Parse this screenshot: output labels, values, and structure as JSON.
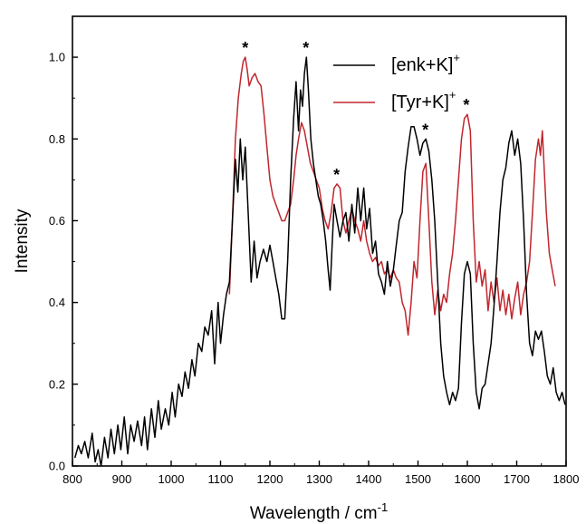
{
  "chart_data": {
    "type": "line",
    "title": "",
    "xlabel": "Wavelength / cm",
    "xlabel_superscript": "-1",
    "ylabel": "Intensity",
    "xlim": [
      800,
      1800
    ],
    "ylim": [
      0,
      1.1
    ],
    "grid": false,
    "legend_position": "top-right",
    "x_ticks": [
      "800",
      "900",
      "1000",
      "1100",
      "1200",
      "1300",
      "1400",
      "1500",
      "1600",
      "1700",
      "1800"
    ],
    "y_ticks": [
      "0.0",
      "0.2",
      "0.4",
      "0.6",
      "0.8",
      "1.0"
    ],
    "x_tick_values": [
      800,
      900,
      1000,
      1100,
      1200,
      1300,
      1400,
      1500,
      1600,
      1700,
      1800
    ],
    "y_tick_values": [
      0,
      0.2,
      0.4,
      0.6,
      0.8,
      1.0
    ],
    "annotation_symbol": "*",
    "annotations_x": [
      1150,
      1273,
      1335,
      1515,
      1598
    ],
    "series": [
      {
        "name": "[enk+K]",
        "name_superscript": "+",
        "color": "#000000",
        "points": [
          [
            805,
            0.02
          ],
          [
            812,
            0.05
          ],
          [
            818,
            0.03
          ],
          [
            825,
            0.06
          ],
          [
            832,
            0.02
          ],
          [
            840,
            0.08
          ],
          [
            846,
            0.01
          ],
          [
            852,
            0.04
          ],
          [
            858,
            0.0
          ],
          [
            865,
            0.07
          ],
          [
            872,
            0.02
          ],
          [
            878,
            0.09
          ],
          [
            885,
            0.03
          ],
          [
            892,
            0.1
          ],
          [
            898,
            0.04
          ],
          [
            905,
            0.12
          ],
          [
            912,
            0.03
          ],
          [
            918,
            0.1
          ],
          [
            925,
            0.06
          ],
          [
            932,
            0.11
          ],
          [
            940,
            0.05
          ],
          [
            946,
            0.12
          ],
          [
            952,
            0.04
          ],
          [
            960,
            0.14
          ],
          [
            967,
            0.07
          ],
          [
            974,
            0.16
          ],
          [
            980,
            0.09
          ],
          [
            988,
            0.14
          ],
          [
            995,
            0.1
          ],
          [
            1002,
            0.18
          ],
          [
            1008,
            0.12
          ],
          [
            1015,
            0.2
          ],
          [
            1022,
            0.17
          ],
          [
            1028,
            0.23
          ],
          [
            1035,
            0.19
          ],
          [
            1042,
            0.26
          ],
          [
            1048,
            0.22
          ],
          [
            1055,
            0.3
          ],
          [
            1062,
            0.28
          ],
          [
            1068,
            0.34
          ],
          [
            1075,
            0.32
          ],
          [
            1082,
            0.38
          ],
          [
            1088,
            0.25
          ],
          [
            1095,
            0.4
          ],
          [
            1100,
            0.3
          ],
          [
            1106,
            0.37
          ],
          [
            1112,
            0.42
          ],
          [
            1118,
            0.45
          ],
          [
            1124,
            0.6
          ],
          [
            1130,
            0.75
          ],
          [
            1135,
            0.67
          ],
          [
            1140,
            0.8
          ],
          [
            1145,
            0.7
          ],
          [
            1150,
            0.78
          ],
          [
            1156,
            0.62
          ],
          [
            1162,
            0.45
          ],
          [
            1168,
            0.55
          ],
          [
            1174,
            0.46
          ],
          [
            1180,
            0.5
          ],
          [
            1187,
            0.53
          ],
          [
            1194,
            0.5
          ],
          [
            1200,
            0.54
          ],
          [
            1206,
            0.5
          ],
          [
            1212,
            0.46
          ],
          [
            1218,
            0.42
          ],
          [
            1224,
            0.36
          ],
          [
            1230,
            0.36
          ],
          [
            1236,
            0.5
          ],
          [
            1242,
            0.7
          ],
          [
            1248,
            0.85
          ],
          [
            1253,
            0.94
          ],
          [
            1258,
            0.82
          ],
          [
            1262,
            0.92
          ],
          [
            1266,
            0.88
          ],
          [
            1270,
            0.96
          ],
          [
            1274,
            1.0
          ],
          [
            1278,
            0.92
          ],
          [
            1283,
            0.8
          ],
          [
            1288,
            0.74
          ],
          [
            1293,
            0.7
          ],
          [
            1298,
            0.66
          ],
          [
            1303,
            0.64
          ],
          [
            1308,
            0.6
          ],
          [
            1313,
            0.55
          ],
          [
            1318,
            0.48
          ],
          [
            1322,
            0.43
          ],
          [
            1326,
            0.54
          ],
          [
            1330,
            0.64
          ],
          [
            1336,
            0.6
          ],
          [
            1342,
            0.56
          ],
          [
            1348,
            0.6
          ],
          [
            1354,
            0.62
          ],
          [
            1360,
            0.55
          ],
          [
            1366,
            0.64
          ],
          [
            1372,
            0.57
          ],
          [
            1378,
            0.68
          ],
          [
            1384,
            0.6
          ],
          [
            1390,
            0.68
          ],
          [
            1396,
            0.58
          ],
          [
            1402,
            0.63
          ],
          [
            1408,
            0.52
          ],
          [
            1414,
            0.55
          ],
          [
            1420,
            0.47
          ],
          [
            1426,
            0.45
          ],
          [
            1432,
            0.42
          ],
          [
            1438,
            0.5
          ],
          [
            1444,
            0.44
          ],
          [
            1450,
            0.48
          ],
          [
            1456,
            0.54
          ],
          [
            1462,
            0.6
          ],
          [
            1468,
            0.62
          ],
          [
            1474,
            0.72
          ],
          [
            1480,
            0.78
          ],
          [
            1486,
            0.83
          ],
          [
            1492,
            0.83
          ],
          [
            1498,
            0.8
          ],
          [
            1504,
            0.76
          ],
          [
            1510,
            0.79
          ],
          [
            1516,
            0.8
          ],
          [
            1522,
            0.77
          ],
          [
            1528,
            0.7
          ],
          [
            1534,
            0.6
          ],
          [
            1540,
            0.45
          ],
          [
            1546,
            0.3
          ],
          [
            1552,
            0.22
          ],
          [
            1558,
            0.18
          ],
          [
            1564,
            0.15
          ],
          [
            1570,
            0.18
          ],
          [
            1576,
            0.16
          ],
          [
            1582,
            0.19
          ],
          [
            1588,
            0.35
          ],
          [
            1594,
            0.47
          ],
          [
            1600,
            0.5
          ],
          [
            1606,
            0.47
          ],
          [
            1612,
            0.3
          ],
          [
            1618,
            0.18
          ],
          [
            1624,
            0.14
          ],
          [
            1630,
            0.19
          ],
          [
            1636,
            0.2
          ],
          [
            1642,
            0.25
          ],
          [
            1648,
            0.3
          ],
          [
            1654,
            0.39
          ],
          [
            1660,
            0.5
          ],
          [
            1666,
            0.62
          ],
          [
            1672,
            0.7
          ],
          [
            1678,
            0.73
          ],
          [
            1684,
            0.79
          ],
          [
            1690,
            0.82
          ],
          [
            1696,
            0.76
          ],
          [
            1702,
            0.8
          ],
          [
            1708,
            0.74
          ],
          [
            1714,
            0.6
          ],
          [
            1720,
            0.42
          ],
          [
            1726,
            0.3
          ],
          [
            1732,
            0.27
          ],
          [
            1738,
            0.33
          ],
          [
            1744,
            0.31
          ],
          [
            1750,
            0.33
          ],
          [
            1756,
            0.28
          ],
          [
            1762,
            0.22
          ],
          [
            1768,
            0.2
          ],
          [
            1774,
            0.24
          ],
          [
            1780,
            0.18
          ],
          [
            1786,
            0.16
          ],
          [
            1792,
            0.18
          ],
          [
            1798,
            0.15
          ]
        ]
      },
      {
        "name": "[Tyr+K]",
        "name_superscript": "+",
        "color": "#c0262d",
        "points": [
          [
            1118,
            0.42
          ],
          [
            1124,
            0.6
          ],
          [
            1130,
            0.8
          ],
          [
            1136,
            0.9
          ],
          [
            1142,
            0.96
          ],
          [
            1146,
            0.99
          ],
          [
            1150,
            1.0
          ],
          [
            1154,
            0.97
          ],
          [
            1158,
            0.93
          ],
          [
            1164,
            0.95
          ],
          [
            1170,
            0.96
          ],
          [
            1176,
            0.94
          ],
          [
            1182,
            0.93
          ],
          [
            1188,
            0.86
          ],
          [
            1194,
            0.78
          ],
          [
            1200,
            0.7
          ],
          [
            1206,
            0.66
          ],
          [
            1212,
            0.64
          ],
          [
            1218,
            0.62
          ],
          [
            1224,
            0.6
          ],
          [
            1230,
            0.6
          ],
          [
            1236,
            0.62
          ],
          [
            1242,
            0.64
          ],
          [
            1248,
            0.7
          ],
          [
            1253,
            0.76
          ],
          [
            1258,
            0.8
          ],
          [
            1264,
            0.84
          ],
          [
            1270,
            0.82
          ],
          [
            1276,
            0.78
          ],
          [
            1282,
            0.74
          ],
          [
            1288,
            0.72
          ],
          [
            1294,
            0.7
          ],
          [
            1300,
            0.68
          ],
          [
            1306,
            0.63
          ],
          [
            1312,
            0.6
          ],
          [
            1318,
            0.58
          ],
          [
            1324,
            0.62
          ],
          [
            1330,
            0.68
          ],
          [
            1336,
            0.69
          ],
          [
            1342,
            0.68
          ],
          [
            1348,
            0.6
          ],
          [
            1354,
            0.57
          ],
          [
            1360,
            0.6
          ],
          [
            1366,
            0.63
          ],
          [
            1372,
            0.6
          ],
          [
            1378,
            0.58
          ],
          [
            1384,
            0.55
          ],
          [
            1390,
            0.6
          ],
          [
            1396,
            0.55
          ],
          [
            1402,
            0.52
          ],
          [
            1408,
            0.5
          ],
          [
            1414,
            0.51
          ],
          [
            1420,
            0.49
          ],
          [
            1426,
            0.5
          ],
          [
            1432,
            0.47
          ],
          [
            1438,
            0.48
          ],
          [
            1444,
            0.46
          ],
          [
            1450,
            0.48
          ],
          [
            1456,
            0.46
          ],
          [
            1462,
            0.45
          ],
          [
            1468,
            0.4
          ],
          [
            1474,
            0.38
          ],
          [
            1480,
            0.32
          ],
          [
            1486,
            0.4
          ],
          [
            1492,
            0.5
          ],
          [
            1498,
            0.46
          ],
          [
            1504,
            0.6
          ],
          [
            1510,
            0.72
          ],
          [
            1516,
            0.74
          ],
          [
            1522,
            0.6
          ],
          [
            1528,
            0.45
          ],
          [
            1534,
            0.37
          ],
          [
            1540,
            0.43
          ],
          [
            1546,
            0.38
          ],
          [
            1552,
            0.42
          ],
          [
            1558,
            0.4
          ],
          [
            1564,
            0.47
          ],
          [
            1570,
            0.52
          ],
          [
            1576,
            0.6
          ],
          [
            1582,
            0.7
          ],
          [
            1588,
            0.8
          ],
          [
            1594,
            0.85
          ],
          [
            1600,
            0.86
          ],
          [
            1606,
            0.82
          ],
          [
            1612,
            0.6
          ],
          [
            1618,
            0.45
          ],
          [
            1624,
            0.5
          ],
          [
            1630,
            0.44
          ],
          [
            1636,
            0.48
          ],
          [
            1642,
            0.38
          ],
          [
            1648,
            0.45
          ],
          [
            1654,
            0.4
          ],
          [
            1660,
            0.46
          ],
          [
            1666,
            0.38
          ],
          [
            1672,
            0.43
          ],
          [
            1678,
            0.37
          ],
          [
            1684,
            0.42
          ],
          [
            1690,
            0.36
          ],
          [
            1696,
            0.41
          ],
          [
            1702,
            0.45
          ],
          [
            1708,
            0.37
          ],
          [
            1714,
            0.42
          ],
          [
            1720,
            0.45
          ],
          [
            1726,
            0.5
          ],
          [
            1732,
            0.62
          ],
          [
            1738,
            0.75
          ],
          [
            1744,
            0.8
          ],
          [
            1748,
            0.76
          ],
          [
            1752,
            0.82
          ],
          [
            1756,
            0.72
          ],
          [
            1760,
            0.62
          ],
          [
            1766,
            0.52
          ],
          [
            1772,
            0.48
          ],
          [
            1778,
            0.44
          ]
        ]
      }
    ]
  }
}
